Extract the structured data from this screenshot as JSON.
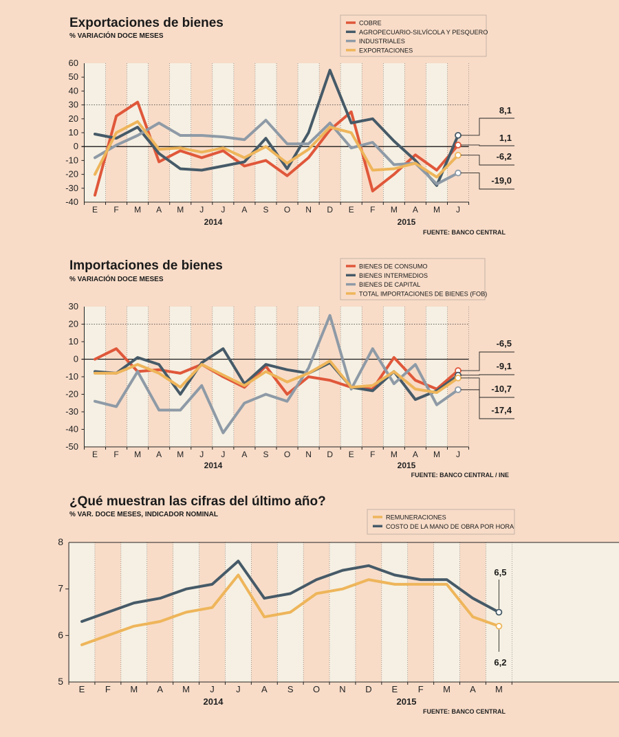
{
  "colors": {
    "background": "#f8dcc8",
    "stripe": "#f5f0e3",
    "axis": "#222222",
    "red": "#e0573a",
    "dark": "#465a68",
    "gray": "#8e9aa6",
    "yellow": "#eeb55a"
  },
  "chart_data": [
    {
      "id": "exports",
      "type": "line",
      "title": "Exportaciones de bienes",
      "subtitle": "% VARIACIÓN DOCE MESES",
      "source": "FUENTE: BANCO CENTRAL",
      "categories": [
        "E",
        "F",
        "M",
        "A",
        "M",
        "J",
        "J",
        "A",
        "S",
        "O",
        "N",
        "D",
        "E",
        "F",
        "M",
        "A",
        "M",
        "J"
      ],
      "year_labels": [
        "2014",
        "2015"
      ],
      "ylim": [
        -40,
        60
      ],
      "yticks": [
        "60",
        "50",
        "40",
        "30",
        "20",
        "10",
        "0",
        "-10",
        "-20",
        "-30",
        "-40"
      ],
      "reference_lines": [
        0,
        30
      ],
      "legend_position": "top-right",
      "series": [
        {
          "name": "COBRE",
          "color": "red",
          "values": [
            -35,
            22,
            32,
            -11,
            -3,
            -8,
            -3,
            -14,
            -10,
            -21,
            -8,
            12,
            25,
            -32,
            -20,
            -6,
            -17,
            1.1
          ]
        },
        {
          "name": "AGROPECUARIO-SILVÍCOLA Y PESQUERO",
          "color": "dark",
          "values": [
            9,
            6,
            14,
            -5,
            -16,
            -17,
            -14,
            -11,
            6,
            -16,
            10,
            55,
            17,
            20,
            4,
            -10,
            -28,
            8.1
          ]
        },
        {
          "name": "INDUSTRIALES",
          "color": "gray",
          "values": [
            -8,
            1,
            8,
            17,
            8,
            8,
            7,
            5,
            19,
            2,
            2,
            17,
            -1,
            3,
            -13,
            -12,
            -27,
            -19.0
          ]
        },
        {
          "name": "EXPORTACIONES",
          "color": "yellow",
          "values": [
            -20,
            10,
            18,
            -2,
            -1,
            -4,
            -1,
            -8,
            0,
            -12,
            -2,
            14,
            10,
            -17,
            -16,
            -12,
            -22,
            -6.2
          ]
        }
      ],
      "end_labels": [
        "8,1",
        "1,1",
        "-6,2",
        "-19,0"
      ]
    },
    {
      "id": "imports",
      "type": "line",
      "title": "Importaciones de bienes",
      "subtitle": "% VARIACIÓN DOCE MESES",
      "source": "FUENTE: BANCO CENTRAL / INE",
      "categories": [
        "E",
        "F",
        "M",
        "A",
        "M",
        "J",
        "J",
        "A",
        "S",
        "O",
        "N",
        "D",
        "E",
        "F",
        "M",
        "A",
        "M",
        "J"
      ],
      "year_labels": [
        "2014",
        "2015"
      ],
      "ylim": [
        -50,
        30
      ],
      "yticks": [
        "30",
        "20",
        "10",
        "0",
        "-10",
        "-20",
        "-30",
        "-40",
        "-50"
      ],
      "reference_lines": [
        0,
        20
      ],
      "legend_position": "top-right",
      "series": [
        {
          "name": "BIENES DE CONSUMO",
          "color": "red",
          "values": [
            0,
            6,
            -7,
            -6,
            -8,
            -3,
            -10,
            -16,
            -4,
            -20,
            -10,
            -12,
            -16,
            -17,
            1,
            -12,
            -17,
            -6.5
          ]
        },
        {
          "name": "BIENES INTERMEDIOS",
          "color": "dark",
          "values": [
            -7,
            -8,
            1,
            -3,
            -20,
            -2,
            6,
            -14,
            -3,
            -6,
            -8,
            -2,
            -16,
            -18,
            -7,
            -23,
            -18,
            -9.1
          ]
        },
        {
          "name": "BIENES DE CAPITAL",
          "color": "gray",
          "values": [
            -24,
            -27,
            -7,
            -29,
            -29,
            -15,
            -42,
            -25,
            -20,
            -24,
            -5,
            25,
            -17,
            6,
            -14,
            -3,
            -26,
            -17.4
          ]
        },
        {
          "name": "TOTAL IMPORTACIONES DE BIENES (FOB)",
          "color": "yellow",
          "values": [
            -8,
            -8,
            -3,
            -8,
            -16,
            -3,
            -9,
            -15,
            -7,
            -13,
            -8,
            -1,
            -16,
            -15,
            -7,
            -17,
            -19,
            -10.7
          ]
        }
      ],
      "end_labels": [
        "-6,5",
        "-9,1",
        "-10,7",
        "-17,4"
      ]
    },
    {
      "id": "wages",
      "type": "line",
      "title": "¿Qué muestran las cifras del último año?",
      "subtitle": "% VAR. DOCE MESES, INDICADOR NOMINAL",
      "source": "FUENTE: BANCO CENTRAL",
      "categories": [
        "E",
        "F",
        "M",
        "A",
        "M",
        "J",
        "J",
        "A",
        "S",
        "O",
        "N",
        "D",
        "E",
        "F",
        "M",
        "A",
        "M"
      ],
      "year_labels": [
        "2014",
        "2015"
      ],
      "ylim": [
        5,
        8
      ],
      "yticks": [
        "8",
        "7",
        "6",
        "5"
      ],
      "legend_position": "top-right",
      "series": [
        {
          "name": "REMUNERACIONES",
          "color": "yellow",
          "values": [
            5.8,
            6.0,
            6.2,
            6.3,
            6.5,
            6.6,
            7.3,
            6.4,
            6.5,
            6.9,
            7.0,
            7.2,
            7.1,
            7.1,
            7.1,
            6.4,
            6.2
          ]
        },
        {
          "name": "COSTO DE LA MANO DE OBRA POR HORA",
          "color": "dark",
          "values": [
            6.3,
            6.5,
            6.7,
            6.8,
            7.0,
            7.1,
            7.6,
            6.8,
            6.9,
            7.2,
            7.4,
            7.5,
            7.3,
            7.2,
            7.2,
            6.8,
            6.5
          ]
        }
      ],
      "end_labels": [
        "6,5",
        "6,2"
      ]
    }
  ]
}
